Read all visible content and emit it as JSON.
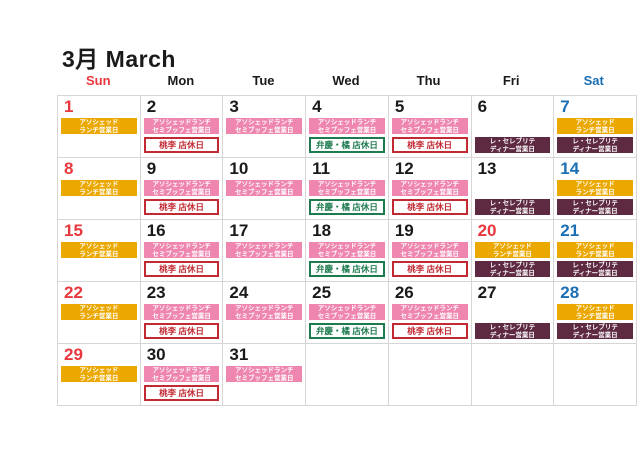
{
  "title": "3月 March",
  "weekdays": [
    {
      "label": "Sun",
      "color": "#e8383d"
    },
    {
      "label": "Mon",
      "color": "#1a1a1a"
    },
    {
      "label": "Tue",
      "color": "#1a1a1a"
    },
    {
      "label": "Wed",
      "color": "#1a1a1a"
    },
    {
      "label": "Thu",
      "color": "#1a1a1a"
    },
    {
      "label": "Fri",
      "color": "#1a1a1a"
    },
    {
      "label": "Sat",
      "color": "#1b6fb5"
    }
  ],
  "number_colors": {
    "default": "#1a1a1a",
    "red": "#e8383d",
    "blue": "#1b6fb5"
  },
  "labels": {
    "lunch": {
      "type": "fill",
      "line1": "アソシェッド",
      "line2": "ランチ営業日",
      "bg": "#eba800"
    },
    "semibuffet": {
      "type": "fill",
      "line1": "アソシェッドランチ",
      "line2": "セミブッフェ営業日",
      "bg": "#ee86af"
    },
    "dinner": {
      "type": "fill",
      "line1": "レ・セレブリテ",
      "line2": "ディナー営業日",
      "bg": "#5e2a42"
    },
    "touri": {
      "type": "outline",
      "text": "桃李 店休日",
      "color": "#c22a33"
    },
    "benkei": {
      "type": "outline",
      "text": "弁慶・橘 店休日",
      "color": "#1e7b4e"
    }
  },
  "weeks": [
    [
      {
        "day": "1",
        "c": "red",
        "slots": [
          "lunch",
          null
        ]
      },
      {
        "day": "2",
        "c": "default",
        "slots": [
          "semibuffet",
          "touri"
        ]
      },
      {
        "day": "3",
        "c": "default",
        "slots": [
          "semibuffet",
          null
        ]
      },
      {
        "day": "4",
        "c": "default",
        "slots": [
          "semibuffet",
          "benkei"
        ]
      },
      {
        "day": "5",
        "c": "default",
        "slots": [
          "semibuffet",
          "touri"
        ]
      },
      {
        "day": "6",
        "c": "default",
        "slots": [
          null,
          "dinner"
        ]
      },
      {
        "day": "7",
        "c": "blue",
        "slots": [
          "lunch",
          "dinner"
        ]
      }
    ],
    [
      {
        "day": "8",
        "c": "red",
        "slots": [
          "lunch",
          null
        ]
      },
      {
        "day": "9",
        "c": "default",
        "slots": [
          "semibuffet",
          "touri"
        ]
      },
      {
        "day": "10",
        "c": "default",
        "slots": [
          "semibuffet",
          null
        ]
      },
      {
        "day": "11",
        "c": "default",
        "slots": [
          "semibuffet",
          "benkei"
        ]
      },
      {
        "day": "12",
        "c": "default",
        "slots": [
          "semibuffet",
          "touri"
        ]
      },
      {
        "day": "13",
        "c": "default",
        "slots": [
          null,
          "dinner"
        ]
      },
      {
        "day": "14",
        "c": "blue",
        "slots": [
          "lunch",
          "dinner"
        ]
      }
    ],
    [
      {
        "day": "15",
        "c": "red",
        "slots": [
          "lunch",
          null
        ]
      },
      {
        "day": "16",
        "c": "default",
        "slots": [
          "semibuffet",
          "touri"
        ]
      },
      {
        "day": "17",
        "c": "default",
        "slots": [
          "semibuffet",
          null
        ]
      },
      {
        "day": "18",
        "c": "default",
        "slots": [
          "semibuffet",
          "benkei"
        ]
      },
      {
        "day": "19",
        "c": "default",
        "slots": [
          "semibuffet",
          "touri"
        ]
      },
      {
        "day": "20",
        "c": "red",
        "slots": [
          "lunch",
          "dinner"
        ]
      },
      {
        "day": "21",
        "c": "blue",
        "slots": [
          "lunch",
          "dinner"
        ]
      }
    ],
    [
      {
        "day": "22",
        "c": "red",
        "slots": [
          "lunch",
          null
        ]
      },
      {
        "day": "23",
        "c": "default",
        "slots": [
          "semibuffet",
          "touri"
        ]
      },
      {
        "day": "24",
        "c": "default",
        "slots": [
          "semibuffet",
          null
        ]
      },
      {
        "day": "25",
        "c": "default",
        "slots": [
          "semibuffet",
          "benkei"
        ]
      },
      {
        "day": "26",
        "c": "default",
        "slots": [
          "semibuffet",
          "touri"
        ]
      },
      {
        "day": "27",
        "c": "default",
        "slots": [
          null,
          "dinner"
        ]
      },
      {
        "day": "28",
        "c": "blue",
        "slots": [
          "lunch",
          "dinner"
        ]
      }
    ],
    [
      {
        "day": "29",
        "c": "red",
        "slots": [
          "lunch",
          null
        ]
      },
      {
        "day": "30",
        "c": "default",
        "slots": [
          "semibuffet",
          "touri"
        ]
      },
      {
        "day": "31",
        "c": "default",
        "slots": [
          "semibuffet",
          null
        ]
      },
      null,
      null,
      null,
      null
    ]
  ]
}
